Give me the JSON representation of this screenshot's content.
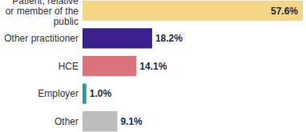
{
  "chart_data": {
    "type": "bar",
    "orientation": "horizontal",
    "categories": [
      "Patient, relative or member of the public",
      "Other practitioner",
      "HCE",
      "Employer",
      "Other"
    ],
    "values": [
      57.6,
      18.2,
      14.1,
      1.0,
      9.1
    ],
    "value_labels": [
      "57.6%",
      "18.2%",
      "14.1%",
      "1.0%",
      "9.1%"
    ],
    "colors": [
      "#f5d684",
      "#3c1f8f",
      "#d9747c",
      "#219e8c",
      "#bdbdbd"
    ],
    "data_labels": true,
    "tick_labels": "y",
    "grid": false
  }
}
